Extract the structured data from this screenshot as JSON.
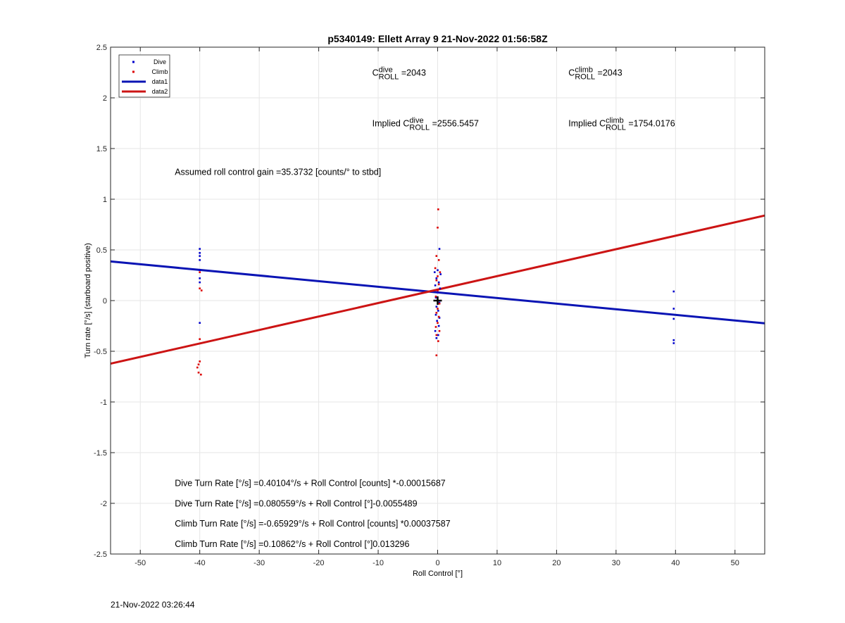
{
  "chart_data": {
    "type": "scatter",
    "title": "p5340149: Ellett Array 9 21-Nov-2022 01:56:58Z",
    "xlabel": "Roll Control [°]",
    "ylabel": "Turn rate [°/s] (starboard positive)",
    "xlim": [
      -55,
      55
    ],
    "ylim": [
      -2.5,
      2.5
    ],
    "xticks": [
      -50,
      -40,
      -30,
      -20,
      -10,
      0,
      10,
      20,
      30,
      40,
      50
    ],
    "yticks": [
      -2.5,
      -2,
      -1.5,
      -1,
      -0.5,
      0,
      0.5,
      1,
      1.5,
      2,
      2.5
    ],
    "grid": true,
    "legend_position": "top-left",
    "legend": [
      {
        "label": "Dive",
        "kind": "marker",
        "color": "#0000cc"
      },
      {
        "label": "Climb",
        "kind": "marker",
        "color": "#dd0000"
      },
      {
        "label": "data1",
        "kind": "line",
        "color": "#0a14b4"
      },
      {
        "label": "data2",
        "kind": "line",
        "color": "#cc1414"
      }
    ],
    "series": [
      {
        "name": "Dive",
        "mode": "markers",
        "color": "#0000cc",
        "points": [
          [
            -40,
            0.51
          ],
          [
            -40,
            0.47
          ],
          [
            -40,
            0.44
          ],
          [
            -40,
            0.4
          ],
          [
            -40,
            0.3
          ],
          [
            -40,
            0.22
          ],
          [
            -40,
            0.18
          ],
          [
            -40,
            -0.22
          ],
          [
            0.3,
            0.51
          ],
          [
            0,
            0.3
          ],
          [
            -0.5,
            0.28
          ],
          [
            0.5,
            0.26
          ],
          [
            -0.2,
            0.22
          ],
          [
            0.2,
            0.18
          ],
          [
            -0.4,
            0.15
          ],
          [
            0.4,
            0.12
          ],
          [
            0,
            0.08
          ],
          [
            -0.3,
            0.03
          ],
          [
            0.3,
            -0.02
          ],
          [
            -0.2,
            -0.06
          ],
          [
            0.1,
            -0.1
          ],
          [
            -0.3,
            -0.14
          ],
          [
            0.3,
            -0.17
          ],
          [
            -0.1,
            -0.2
          ],
          [
            0.2,
            -0.25
          ],
          [
            -0.4,
            -0.3
          ],
          [
            0.1,
            -0.34
          ],
          [
            -0.2,
            -0.37
          ],
          [
            39.7,
            0.09
          ],
          [
            39.7,
            -0.08
          ],
          [
            39.7,
            -0.18
          ],
          [
            39.7,
            -0.39
          ],
          [
            39.7,
            -0.42
          ]
        ]
      },
      {
        "name": "Climb",
        "mode": "markers",
        "color": "#dd0000",
        "points": [
          [
            -40,
            0.28
          ],
          [
            -40,
            0.12
          ],
          [
            -39.7,
            0.1
          ],
          [
            -40,
            -0.38
          ],
          [
            -40,
            -0.6
          ],
          [
            -40.2,
            -0.63
          ],
          [
            -40.4,
            -0.66
          ],
          [
            -40.2,
            -0.71
          ],
          [
            -39.8,
            -0.73
          ],
          [
            0.1,
            0.9
          ],
          [
            0,
            0.72
          ],
          [
            -0.2,
            0.44
          ],
          [
            0.2,
            0.4
          ],
          [
            -0.4,
            0.32
          ],
          [
            0.4,
            0.28
          ],
          [
            0,
            0.24
          ],
          [
            -0.2,
            0.2
          ],
          [
            0.2,
            0.16
          ],
          [
            0,
            0.1
          ],
          [
            -0.3,
            0.04
          ],
          [
            0.3,
            -0.03
          ],
          [
            0,
            -0.08
          ],
          [
            -0.2,
            -0.12
          ],
          [
            0.2,
            -0.16
          ],
          [
            0,
            -0.22
          ],
          [
            -0.3,
            -0.26
          ],
          [
            0.3,
            -0.3
          ],
          [
            -0.2,
            -0.34
          ],
          [
            0.1,
            -0.4
          ],
          [
            -0.2,
            -0.54
          ]
        ]
      },
      {
        "name": "data1",
        "mode": "line",
        "color": "#0a14b4",
        "x": [
          -55,
          55
        ],
        "y": [
          0.386,
          -0.224
        ]
      },
      {
        "name": "data2",
        "mode": "line",
        "color": "#cc1414",
        "x": [
          -55,
          55
        ],
        "y": [
          -0.622,
          0.839
        ]
      }
    ],
    "marker": {
      "x": 0,
      "y": 0,
      "symbol": "+",
      "color": "#000000"
    },
    "annotations": [
      {
        "id": "c-roll-dive",
        "parts": [
          {
            "t": "C"
          },
          {
            "t": "ROLL",
            "style": "sub"
          },
          {
            "t": "dive",
            "style": "sup"
          },
          {
            "t": " =2043"
          }
        ],
        "x": -11,
        "y": 2.22
      },
      {
        "id": "c-roll-climb",
        "parts": [
          {
            "t": "C"
          },
          {
            "t": "ROLL",
            "style": "sub"
          },
          {
            "t": "climb",
            "style": "sup"
          },
          {
            "t": " =2043"
          }
        ],
        "x": 22,
        "y": 2.22
      },
      {
        "id": "implied-dive",
        "parts": [
          {
            "t": "Implied C"
          },
          {
            "t": "ROLL",
            "style": "sub"
          },
          {
            "t": "dive",
            "style": "sup"
          },
          {
            "t": " =2556.5457"
          }
        ],
        "x": -11,
        "y": 1.72
      },
      {
        "id": "implied-climb",
        "parts": [
          {
            "t": "Implied C"
          },
          {
            "t": "ROLL",
            "style": "sub"
          },
          {
            "t": "climb",
            "style": "sup"
          },
          {
            "t": " =1754.0176"
          }
        ],
        "x": 22,
        "y": 1.72
      },
      {
        "id": "gain",
        "parts": [
          {
            "t": "Assumed roll control gain =35.3732 [counts/° to stbd]"
          }
        ],
        "x": -44.2,
        "y": 1.24
      },
      {
        "id": "dive-eq-counts",
        "parts": [
          {
            "t": "Dive Turn Rate [°/s] =0.40104°/s + Roll Control [counts] *-0.00015687"
          }
        ],
        "x": -44.2,
        "y": -1.83
      },
      {
        "id": "dive-eq-deg",
        "parts": [
          {
            "t": "Dive Turn Rate [°/s] =0.080559°/s + Roll Control [°]-0.0055489"
          }
        ],
        "x": -44.2,
        "y": -2.03
      },
      {
        "id": "climb-eq-counts",
        "parts": [
          {
            "t": "Climb Turn Rate [°/s] =-0.65929°/s + Roll Control [counts] *0.00037587"
          }
        ],
        "x": -44.2,
        "y": -2.23
      },
      {
        "id": "climb-eq-deg",
        "parts": [
          {
            "t": "Climb Turn Rate [°/s] =0.10862°/s + Roll Control [°]0.013296"
          }
        ],
        "x": -44.2,
        "y": -2.43
      }
    ]
  },
  "footer": {
    "timestamp": "21-Nov-2022 03:26:44"
  }
}
